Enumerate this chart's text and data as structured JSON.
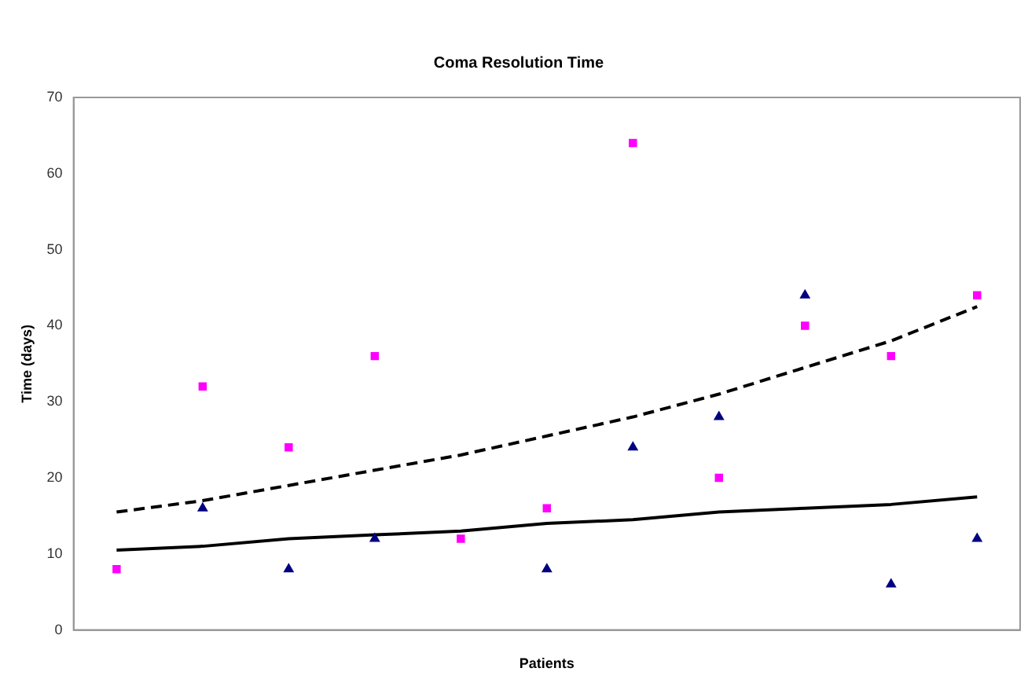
{
  "chart_data": {
    "type": "scatter",
    "title": "Coma Resolution Time",
    "xlabel": "Patients",
    "ylabel": "Time (days)",
    "categories": [
      null,
      null,
      null,
      null,
      null,
      null,
      null,
      null,
      null,
      null,
      null
    ],
    "series": [
      {
        "color": "#ff00ff",
        "marker": "square",
        "values": [
          8,
          32,
          24,
          36,
          12,
          16,
          64,
          20,
          40,
          36,
          44
        ]
      },
      {
        "color": "#000080",
        "marker": "triangle",
        "values": [
          null,
          16,
          8,
          12,
          null,
          8,
          24,
          28,
          44,
          6,
          12
        ]
      },
      {
        "type": "line",
        "color": "#000000",
        "line_style": "dashed",
        "marker": "none",
        "values": [
          15.5,
          17,
          19,
          21,
          23,
          25.5,
          28,
          31,
          34.5,
          38,
          42.5
        ]
      },
      {
        "type": "line",
        "color": "#000000",
        "line_style": "solid",
        "marker": "none",
        "values": [
          10.5,
          11,
          12,
          12.5,
          13,
          14,
          14.5,
          15.5,
          16,
          16.5,
          17.5
        ]
      }
    ],
    "ylim": [
      0,
      70
    ],
    "yticks": [
      0,
      10,
      20,
      30,
      40,
      50,
      60,
      70
    ],
    "grid": false,
    "legend": false
  }
}
